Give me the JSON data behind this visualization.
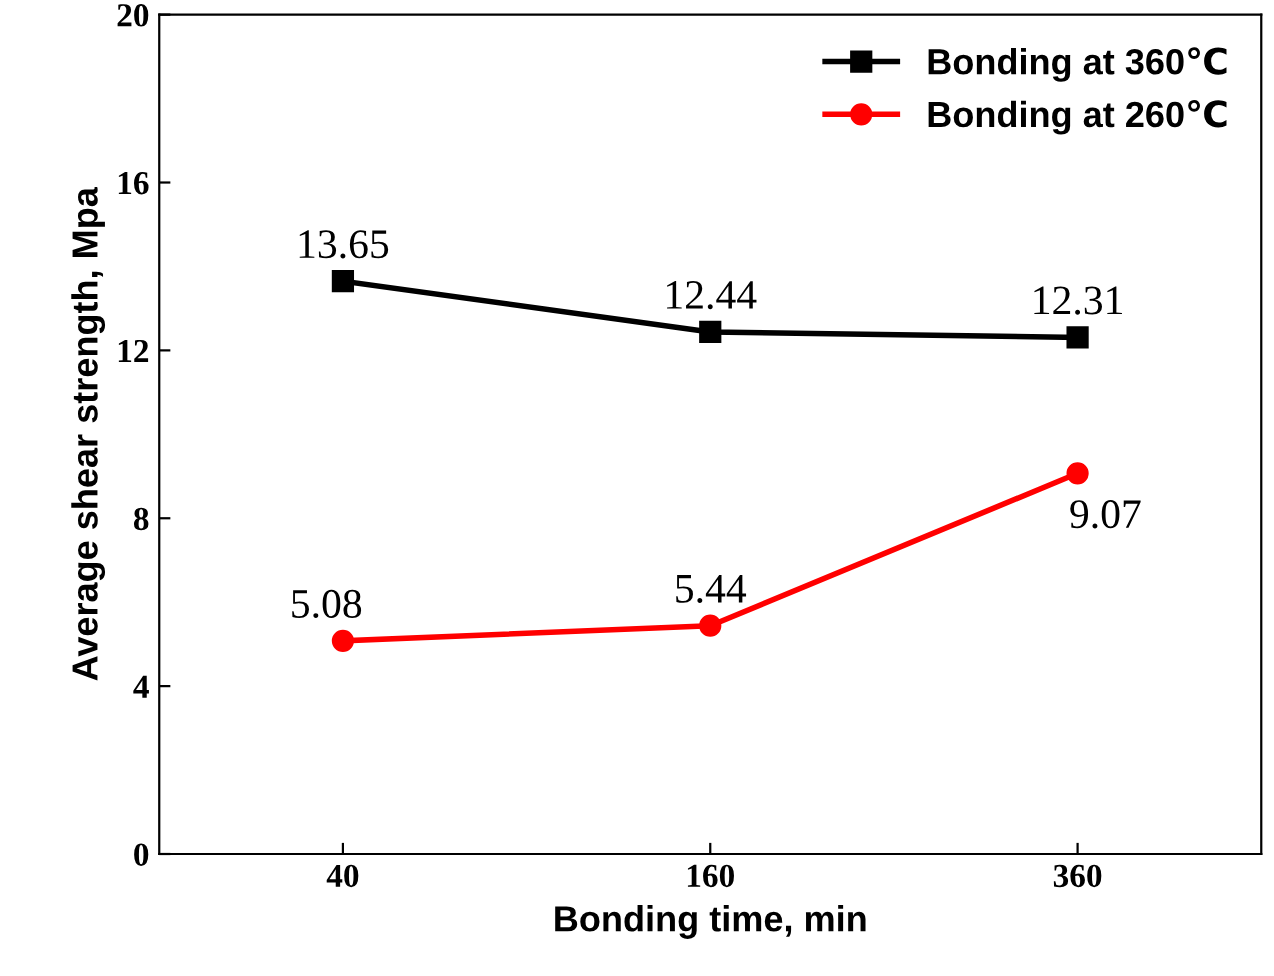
{
  "chart_data": {
    "type": "line",
    "xlabel": "Bonding time, min",
    "ylabel": "Average shear strength, Mpa",
    "categories": [
      "40",
      "160",
      "360"
    ],
    "series": [
      {
        "name": "Bonding at 360℃",
        "color": "#000000",
        "marker": "square",
        "values": [
          13.65,
          12.44,
          12.31
        ]
      },
      {
        "name": "Bonding at 260℃",
        "color": "#ff0000",
        "marker": "circle",
        "values": [
          5.08,
          5.44,
          9.07
        ]
      }
    ],
    "ylim": [
      0,
      20
    ],
    "yticks": [
      0,
      4,
      8,
      12,
      16,
      20
    ],
    "grid": false,
    "legend": "top right",
    "data_labels": true,
    "line_style": "solid"
  }
}
